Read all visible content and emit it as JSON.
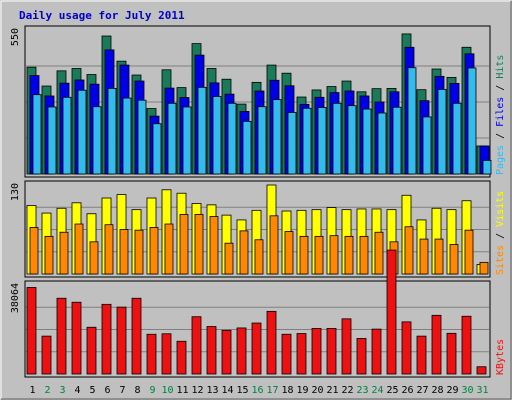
{
  "chart_data": {
    "type": "bar",
    "title": "Daily usage for July 2011",
    "days": [
      "1",
      "2",
      "3",
      "4",
      "5",
      "6",
      "7",
      "8",
      "9",
      "10",
      "11",
      "12",
      "13",
      "14",
      "15",
      "16",
      "17",
      "18",
      "19",
      "20",
      "21",
      "22",
      "23",
      "24",
      "25",
      "26",
      "27",
      "28",
      "29",
      "30",
      "31"
    ],
    "weekend_days": [
      "2",
      "3",
      "9",
      "10",
      "16",
      "17",
      "23",
      "24",
      "30",
      "31"
    ],
    "panels": [
      {
        "name": "hits-files-pages",
        "ylabel_max": "550",
        "ymax": 550,
        "side_labels": [
          "Pages",
          "Files",
          "Hits"
        ],
        "series": [
          {
            "name": "Hits",
            "color": "#1a7a5a",
            "values": [
              408,
              336,
              394,
              403,
              380,
              527,
              431,
              378,
              250,
              398,
              330,
              498,
              403,
              362,
              267,
              350,
              416,
              385,
              294,
              321,
              334,
              355,
              314,
              326,
              327,
              535,
              322,
              401,
              369,
              484,
              107
            ]
          },
          {
            "name": "Files",
            "color": "#0000e8",
            "values": [
              376,
              298,
              347,
              359,
              343,
              474,
              416,
              355,
              221,
              328,
              292,
              454,
              348,
              305,
              239,
              317,
              358,
              337,
              266,
              293,
              311,
              317,
              298,
              275,
              314,
              484,
              280,
              373,
              346,
              459,
              107
            ]
          },
          {
            "name": "Pages",
            "color": "#33bbee",
            "values": [
              303,
              256,
              293,
              320,
              257,
              327,
              290,
              282,
              192,
              270,
              256,
              331,
              296,
              270,
              201,
              257,
              284,
              235,
              251,
              254,
              270,
              261,
              248,
              233,
              255,
              406,
              218,
              323,
              270,
              405,
              52
            ]
          }
        ]
      },
      {
        "name": "visits-sites",
        "ylabel_max": "130",
        "ymax": 130,
        "side_labels": [
          "Sites",
          "Visits"
        ],
        "series": [
          {
            "name": "Visits",
            "color": "#ffff00",
            "values": [
              100,
              89,
              96,
              104,
              88,
              111,
              116,
              94,
              111,
              123,
              118,
              103,
              101,
              86,
              79,
              93,
              130,
              92,
              93,
              94,
              97,
              94,
              95,
              95,
              94,
              115,
              79,
              96,
              94,
              107,
              14
            ]
          },
          {
            "name": "Sites",
            "color": "#ff8800",
            "values": [
              68,
              55,
              61,
              73,
              47,
              72,
              65,
              64,
              68,
              73,
              87,
              87,
              84,
              45,
              63,
              50,
              85,
              62,
              55,
              55,
              56,
              55,
              55,
              61,
              47,
              69,
              51,
              51,
              43,
              64,
              17
            ]
          }
        ]
      },
      {
        "name": "kbytes",
        "ylabel_max": "38064",
        "ymax": 38064,
        "side_labels": [
          "KBytes"
        ],
        "series": [
          {
            "name": "KBytes",
            "color": "#ee1111",
            "values": [
              37000,
              16200,
              32400,
              30700,
              20000,
              29800,
              28600,
              32400,
              17000,
              17200,
              14000,
              24500,
              20300,
              18700,
              19700,
              21800,
              26800,
              17000,
              17300,
              19500,
              19500,
              23600,
              15200,
              19200,
              53000,
              22300,
              16200,
              25100,
              17400,
              24700,
              3100
            ]
          }
        ]
      }
    ]
  },
  "colors": {
    "title": "#0000cc",
    "axis_label": "#000000",
    "weekday_label": "#000000",
    "weekend_label": "#008040",
    "panel_bg": "#c0c0c0",
    "grid": "#808080"
  }
}
